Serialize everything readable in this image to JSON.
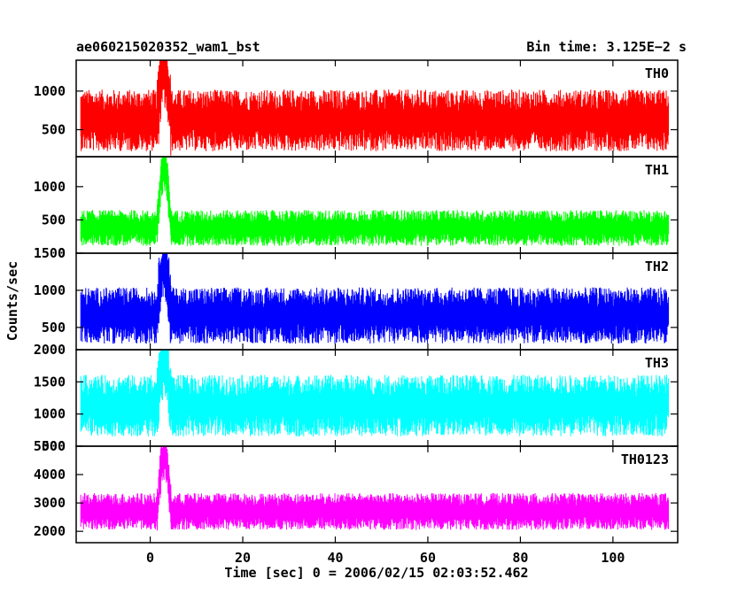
{
  "header": {
    "title_left": "ae060215020352_wam1_bst",
    "title_right": "Bin time: 3.125E−2 s"
  },
  "chart_data": {
    "type": "line",
    "title": "ae060215020352_wam1_bst",
    "subtitle": "Bin time: 3.125E−2 s",
    "xlabel": "Time [sec] 0 = 2006/02/15 02:03:52.462",
    "ylabel": "Counts/sec",
    "xlim": [
      -16,
      114
    ],
    "x_ticks": [
      0,
      20,
      40,
      60,
      80,
      100
    ],
    "x_tick_labels": [
      "0",
      "20",
      "40",
      "60",
      "80",
      "100"
    ],
    "x_data_range": [
      -15,
      112
    ],
    "panels": [
      {
        "name": "TH0",
        "color": "#ff0000",
        "ylim": [
          150,
          1400
        ],
        "y_ticks": [
          500,
          1000
        ],
        "y_tick_labels": [
          "500",
          "1000"
        ],
        "baseline": 620,
        "spread": 400,
        "burst_peak": 1400
      },
      {
        "name": "TH1",
        "color": "#00ff00",
        "ylim": [
          0,
          1450
        ],
        "y_ticks": [
          0,
          500,
          1000
        ],
        "y_tick_labels": [
          "0",
          "500",
          "1000"
        ],
        "baseline": 380,
        "spread": 270,
        "burst_peak": 1450
      },
      {
        "name": "TH2",
        "color": "#0000ff",
        "ylim": [
          200,
          1500
        ],
        "y_ticks": [
          500,
          1000,
          1500
        ],
        "y_tick_labels": [
          "500",
          "1000",
          "1500"
        ],
        "baseline": 660,
        "spread": 380,
        "burst_peak": 1500
      },
      {
        "name": "TH3",
        "color": "#00ffff",
        "ylim": [
          500,
          2000
        ],
        "y_ticks": [
          500,
          1000,
          1500,
          2000
        ],
        "y_tick_labels": [
          "500",
          "1000",
          "1500",
          "2000"
        ],
        "baseline": 1130,
        "spread": 480,
        "burst_peak": 2000
      },
      {
        "name": "TH0123",
        "color": "#ff00ff",
        "ylim": [
          1600,
          5000
        ],
        "y_ticks": [
          2000,
          3000,
          4000,
          5000
        ],
        "y_tick_labels": [
          "2000",
          "3000",
          "4000",
          "5000"
        ],
        "baseline": 2700,
        "spread": 650,
        "burst_peak": 5000
      }
    ],
    "burst": {
      "start": 1.5,
      "end": 4.5
    },
    "grid": false,
    "legend": "none"
  }
}
